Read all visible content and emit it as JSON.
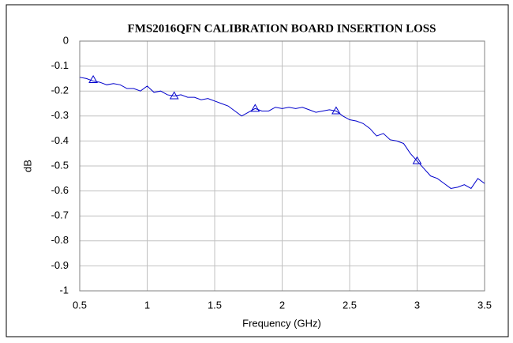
{
  "chart_data": {
    "type": "line",
    "title": "FMS2016QFN CALIBRATION BOARD INSERTION LOSS",
    "x_label": "Frequency (GHz)",
    "y_label": "dB",
    "xlim": [
      0.5,
      3.5
    ],
    "xticks": [
      0.5,
      1,
      1.5,
      2,
      2.5,
      3,
      3.5
    ],
    "ylim": [
      -1,
      0
    ],
    "yticks": [
      0,
      -0.1,
      -0.2,
      -0.3,
      -0.4,
      -0.5,
      -0.6,
      -0.7,
      -0.8,
      -0.9,
      -1
    ],
    "grid": true,
    "series": [
      {
        "color": "#0000cc",
        "style": "line",
        "x": [
          0.5,
          0.55,
          0.6,
          0.65,
          0.7,
          0.75,
          0.8,
          0.85,
          0.9,
          0.95,
          1.0,
          1.05,
          1.1,
          1.15,
          1.2,
          1.25,
          1.3,
          1.35,
          1.4,
          1.45,
          1.5,
          1.55,
          1.6,
          1.65,
          1.7,
          1.75,
          1.8,
          1.85,
          1.9,
          1.95,
          2.0,
          2.05,
          2.1,
          2.15,
          2.2,
          2.25,
          2.3,
          2.35,
          2.4,
          2.45,
          2.5,
          2.55,
          2.6,
          2.65,
          2.7,
          2.75,
          2.8,
          2.85,
          2.9,
          2.95,
          3.0,
          3.05,
          3.1,
          3.15,
          3.2,
          3.25,
          3.3,
          3.35,
          3.4,
          3.45,
          3.5
        ],
        "values": [
          -0.145,
          -0.15,
          -0.16,
          -0.165,
          -0.175,
          -0.17,
          -0.175,
          -0.19,
          -0.19,
          -0.2,
          -0.18,
          -0.205,
          -0.2,
          -0.215,
          -0.22,
          -0.215,
          -0.225,
          -0.225,
          -0.235,
          -0.23,
          -0.24,
          -0.25,
          -0.26,
          -0.28,
          -0.3,
          -0.285,
          -0.27,
          -0.28,
          -0.28,
          -0.265,
          -0.27,
          -0.265,
          -0.27,
          -0.265,
          -0.275,
          -0.285,
          -0.28,
          -0.275,
          -0.28,
          -0.3,
          -0.315,
          -0.32,
          -0.33,
          -0.35,
          -0.38,
          -0.37,
          -0.395,
          -0.4,
          -0.41,
          -0.45,
          -0.48,
          -0.51,
          -0.54,
          -0.55,
          -0.57,
          -0.59,
          -0.585,
          -0.575,
          -0.59,
          -0.55,
          -0.57
        ]
      },
      {
        "color": "#0000cc",
        "style": "triangle",
        "x": [
          0.6,
          1.2,
          1.8,
          2.4,
          3.0
        ],
        "values": [
          -0.155,
          -0.22,
          -0.27,
          -0.28,
          -0.48
        ]
      }
    ]
  }
}
